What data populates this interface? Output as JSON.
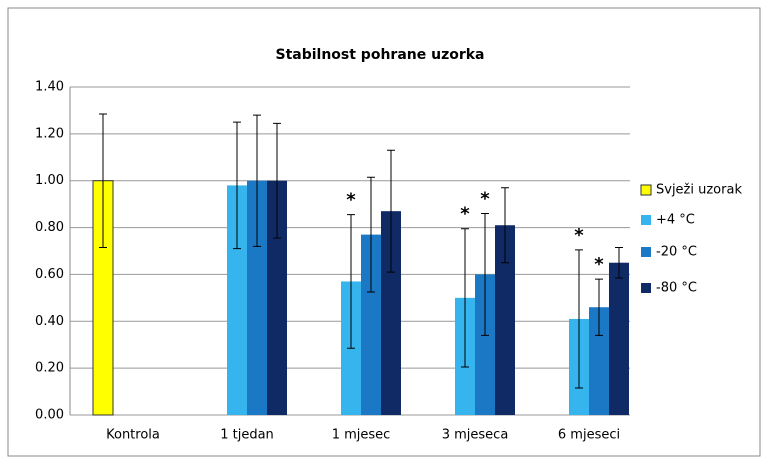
{
  "chart_data": {
    "type": "bar",
    "title": "Stabilnost pohrane uzorka",
    "categories": [
      "Kontrola",
      "1 tjedan",
      "1 mjesec",
      "3 mjeseca",
      "6 mjeseci"
    ],
    "series": [
      {
        "name": "Svježi uzorak",
        "color": "#ffff00",
        "values": [
          1.0,
          null,
          null,
          null,
          null
        ],
        "errors": [
          0.285,
          null,
          null,
          null,
          null
        ],
        "significance": [
          null,
          null,
          null,
          null,
          null
        ]
      },
      {
        "name": "+4 °C",
        "color": "#35b4ee",
        "values": [
          null,
          0.98,
          0.57,
          0.5,
          0.41
        ],
        "errors": [
          null,
          0.27,
          0.285,
          0.295,
          0.295
        ],
        "significance": [
          null,
          null,
          "*",
          "*",
          "*"
        ]
      },
      {
        "name": "-20 °C",
        "color": "#1b78c4",
        "values": [
          null,
          1.0,
          0.77,
          0.6,
          0.46
        ],
        "errors": [
          null,
          0.28,
          0.245,
          0.26,
          0.12
        ],
        "significance": [
          null,
          null,
          null,
          "*",
          "*"
        ]
      },
      {
        "name": "-80 °C",
        "color": "#102a66",
        "values": [
          null,
          1.0,
          0.87,
          0.81,
          0.65
        ],
        "errors": [
          null,
          0.245,
          0.26,
          0.16,
          0.065
        ],
        "significance": [
          null,
          null,
          null,
          null,
          null
        ]
      }
    ],
    "ylim": [
      0,
      1.4
    ],
    "yticks": [
      {
        "value": 0,
        "label": "0.00"
      },
      {
        "value": 0.2,
        "label": "0.20"
      },
      {
        "value": 0.4,
        "label": "0.40"
      },
      {
        "value": 0.6,
        "label": "0.60"
      },
      {
        "value": 0.8,
        "label": "0.80"
      },
      {
        "value": 1.0,
        "label": "1.00"
      },
      {
        "value": 1.2,
        "label": "1.20"
      },
      {
        "value": 1.4,
        "label": "1.40"
      }
    ],
    "grid": true,
    "legend": "right"
  }
}
